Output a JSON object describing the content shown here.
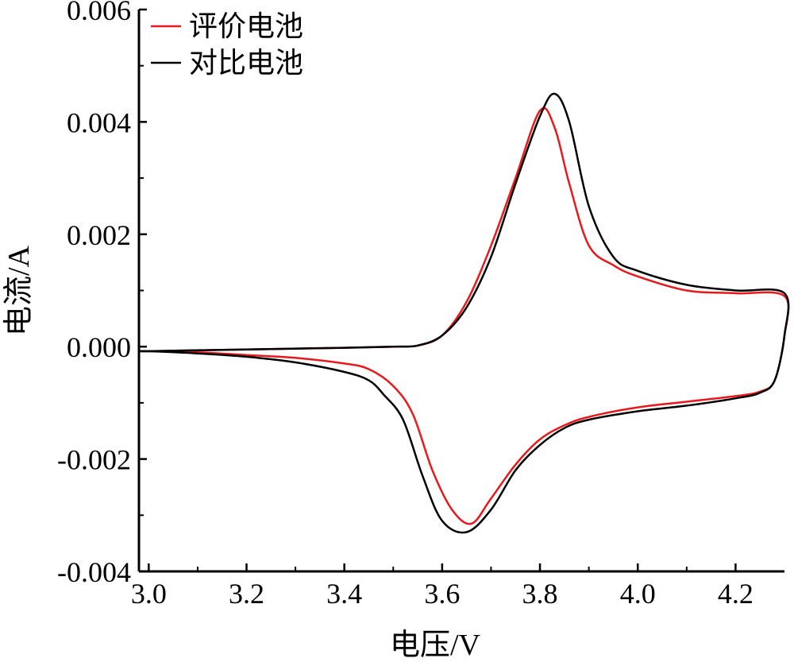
{
  "chart_data": {
    "type": "line",
    "title": "",
    "xlabel": "电压/V",
    "ylabel": "电流/A",
    "xlim": [
      2.98,
      4.3
    ],
    "ylim": [
      -0.004,
      0.006
    ],
    "x_ticks": [
      3.0,
      3.2,
      3.4,
      3.6,
      3.8,
      4.0,
      4.2
    ],
    "x_tick_labels": [
      "3.0",
      "3.2",
      "3.4",
      "3.6",
      "3.8",
      "4.0",
      "4.2"
    ],
    "y_ticks": [
      -0.004,
      -0.002,
      0.0,
      0.002,
      0.004,
      0.006
    ],
    "y_tick_labels": [
      "-0.004",
      "-0.002",
      "0.000",
      "0.002",
      "0.004",
      "0.006"
    ],
    "grid": false,
    "legend_position": "top-left",
    "series": [
      {
        "name": "评价电池",
        "color": "#e8191c",
        "x": [
          3.0,
          3.2,
          3.4,
          3.5,
          3.55,
          3.6,
          3.65,
          3.7,
          3.75,
          3.8,
          3.83,
          3.86,
          3.9,
          3.95,
          4.0,
          4.1,
          4.2,
          4.3,
          4.3,
          4.28,
          4.25,
          4.2,
          4.1,
          4.0,
          3.9,
          3.85,
          3.8,
          3.75,
          3.7,
          3.66,
          3.62,
          3.58,
          3.54,
          3.5,
          3.45,
          3.4,
          3.3,
          3.2,
          3.1,
          3.0
        ],
        "y": [
          -8e-05,
          -5e-05,
          -2e-05,
          0.0,
          2e-05,
          0.0002,
          0.0008,
          0.0018,
          0.003,
          0.0042,
          0.0039,
          0.0029,
          0.0018,
          0.00145,
          0.00125,
          0.001,
          0.00095,
          0.0009,
          0.0002,
          -0.0006,
          -0.0008,
          -0.00088,
          -0.00098,
          -0.00108,
          -0.00125,
          -0.0014,
          -0.00165,
          -0.0021,
          -0.0027,
          -0.00315,
          -0.0029,
          -0.0022,
          -0.0012,
          -0.0007,
          -0.0004,
          -0.0003,
          -0.0002,
          -0.00015,
          -0.0001,
          -8e-05
        ]
      },
      {
        "name": "对比电池",
        "color": "#000000",
        "x": [
          3.0,
          3.2,
          3.4,
          3.5,
          3.55,
          3.6,
          3.65,
          3.7,
          3.75,
          3.8,
          3.83,
          3.86,
          3.9,
          3.95,
          4.0,
          4.1,
          4.2,
          4.3,
          4.3,
          4.28,
          4.25,
          4.2,
          4.1,
          4.0,
          3.9,
          3.85,
          3.8,
          3.75,
          3.7,
          3.65,
          3.6,
          3.56,
          3.52,
          3.48,
          3.45,
          3.4,
          3.3,
          3.2,
          3.1,
          3.0
        ],
        "y": [
          -8e-05,
          -5e-05,
          -2e-05,
          0.0,
          2e-05,
          0.0002,
          0.0007,
          0.0016,
          0.0029,
          0.0041,
          0.0045,
          0.004,
          0.0025,
          0.0016,
          0.00135,
          0.0011,
          0.001,
          0.00095,
          0.0002,
          -0.0006,
          -0.00082,
          -0.00092,
          -0.00105,
          -0.00115,
          -0.0013,
          -0.00145,
          -0.00175,
          -0.0022,
          -0.0029,
          -0.0033,
          -0.0031,
          -0.0023,
          -0.0013,
          -0.00085,
          -0.0006,
          -0.00045,
          -0.00028,
          -0.00018,
          -0.00012,
          -8e-05
        ]
      }
    ]
  }
}
